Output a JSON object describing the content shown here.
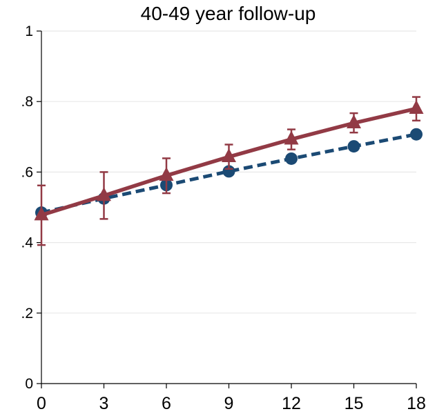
{
  "chart_data": {
    "type": "line",
    "title": "40-49 year follow-up",
    "xlabel": "",
    "ylabel": "",
    "x": [
      0,
      3,
      6,
      9,
      12,
      15,
      18
    ],
    "xticks": [
      0,
      3,
      6,
      9,
      12,
      15,
      18
    ],
    "xtick_labels": [
      "0",
      "3",
      "6",
      "9",
      "12",
      "15",
      "18"
    ],
    "yticks": [
      0,
      0.2,
      0.4,
      0.6,
      0.8,
      1
    ],
    "ytick_labels": [
      "0",
      ".2",
      ".4",
      ".6",
      ".8",
      "1"
    ],
    "xlim": [
      0,
      18
    ],
    "ylim": [
      0,
      1
    ],
    "grid": "horizontal",
    "legend": "none",
    "series": [
      {
        "marker": "circle",
        "line_style": "dashed",
        "color": "#1b4a74",
        "values": [
          0.485,
          0.525,
          0.563,
          0.602,
          0.638,
          0.673,
          0.707
        ]
      },
      {
        "marker": "triangle",
        "line_style": "solid",
        "color": "#923a45",
        "values": [
          0.478,
          0.533,
          0.59,
          0.643,
          0.693,
          0.739,
          0.78
        ],
        "ci_lower": [
          0.393,
          0.467,
          0.54,
          0.609,
          0.664,
          0.712,
          0.746
        ],
        "ci_upper": [
          0.562,
          0.6,
          0.639,
          0.678,
          0.721,
          0.767,
          0.813
        ]
      }
    ]
  }
}
